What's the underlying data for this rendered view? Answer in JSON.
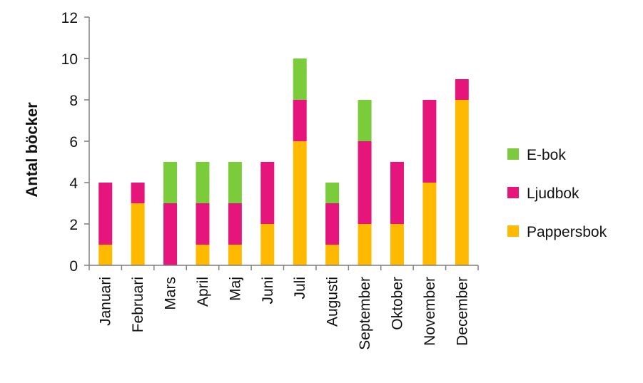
{
  "chart_data": {
    "type": "bar",
    "stacked": true,
    "xlabel": "",
    "ylabel": "Antal böcker",
    "ylim": [
      0,
      12
    ],
    "yticks": [
      0,
      2,
      4,
      6,
      8,
      10,
      12
    ],
    "grid": false,
    "legend_position": "right",
    "categories": [
      "Januari",
      "Februari",
      "Mars",
      "April",
      "Maj",
      "Juni",
      "Juli",
      "Augusti",
      "September",
      "Oktober",
      "November",
      "December"
    ],
    "series": [
      {
        "name": "Pappersbok",
        "color": "#FFB900",
        "values": [
          1,
          3,
          0,
          1,
          1,
          2,
          6,
          1,
          2,
          2,
          4,
          8
        ]
      },
      {
        "name": "Ljudbok",
        "color": "#E6157C",
        "values": [
          3,
          1,
          3,
          2,
          2,
          3,
          2,
          2,
          4,
          3,
          4,
          1
        ]
      },
      {
        "name": "E-bok",
        "color": "#7ACC3A",
        "values": [
          0,
          0,
          2,
          2,
          2,
          0,
          2,
          1,
          2,
          0,
          0,
          0
        ]
      }
    ],
    "legend_order": [
      "E-bok",
      "Ljudbok",
      "Pappersbok"
    ]
  }
}
